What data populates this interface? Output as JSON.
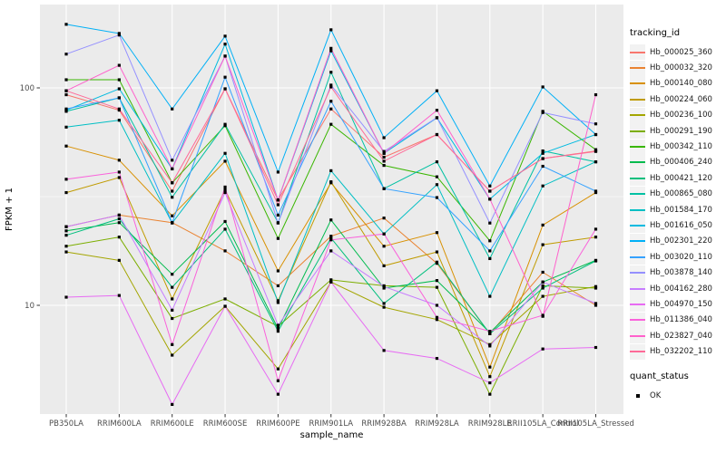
{
  "chart_data": {
    "type": "line",
    "title": "",
    "xlabel": "sample_name",
    "ylabel": "FPKM + 1",
    "y_scale": "log10",
    "y_major_ticks": [
      10,
      100
    ],
    "y_minor_gridlines": [
      3.162,
      31.62
    ],
    "ylim": [
      3.16,
      235
    ],
    "grid": true,
    "panel_bg": "#EBEBEB",
    "grid_color": "#FFFFFF",
    "axis_text_color": "#4d4d4d",
    "marker": {
      "shape": "square",
      "color": "#000000"
    },
    "categories": [
      "PB350LA",
      "RRIM600LA",
      "RRIM600LE",
      "RRIM600SE",
      "RRIM600PE",
      "RRIM901LA",
      "RRIM928BA",
      "RRIM928LA",
      "RRIM928LE",
      "RRII105LA_Control",
      "RRII105LA_Stressed"
    ],
    "series": [
      {
        "id": "Hb_000025_360",
        "color": "#F8766D",
        "values": [
          93,
          79,
          33.5,
          99,
          30.5,
          80,
          48,
          61,
          33.5,
          47.3,
          51.3
        ]
      },
      {
        "id": "Hb_000032_320",
        "color": "#EA8331",
        "values": [
          23,
          26,
          24,
          17.8,
          12.3,
          20.8,
          25.2,
          15.6,
          7.4,
          14.2,
          10
        ]
      },
      {
        "id": "Hb_000140_080",
        "color": "#D89000",
        "values": [
          54,
          46.5,
          25.8,
          46,
          14.4,
          36.6,
          18.7,
          21.6,
          5.2,
          23.4,
          33
        ]
      },
      {
        "id": "Hb_000224_060",
        "color": "#C09B00",
        "values": [
          33,
          38.7,
          10.7,
          34,
          10.5,
          37,
          15.2,
          17.6,
          4.7,
          19,
          20.6
        ]
      },
      {
        "id": "Hb_000236_100",
        "color": "#A3A500",
        "values": [
          17.6,
          16.1,
          5.9,
          9.9,
          5.1,
          12.8,
          9.8,
          8.6,
          6.6,
          11,
          12.2
        ]
      },
      {
        "id": "Hb_000291_190",
        "color": "#7CAE00",
        "values": [
          18.7,
          20.6,
          8.7,
          10.7,
          8,
          13.1,
          12.3,
          12.1,
          3.9,
          12.3,
          12
        ]
      },
      {
        "id": "Hb_000342_110",
        "color": "#39B600",
        "values": [
          109,
          109,
          36.6,
          67,
          20.3,
          68,
          44,
          39,
          19.8,
          78,
          52
        ]
      },
      {
        "id": "Hb_000406_240",
        "color": "#00BB4E",
        "values": [
          22,
          24,
          13.9,
          24.3,
          7.8,
          24.7,
          12,
          13,
          7.5,
          12.8,
          16.1
        ]
      },
      {
        "id": "Hb_000421_120",
        "color": "#00BF7D",
        "values": [
          21,
          25,
          12.1,
          22.4,
          7.6,
          20.4,
          10.2,
          15.8,
          7.4,
          12,
          16
        ]
      },
      {
        "id": "Hb_000865_080",
        "color": "#00C1A3",
        "values": [
          78,
          90,
          31.4,
          68,
          24,
          118,
          34.4,
          45.7,
          16.4,
          51.3,
          45.7
        ]
      },
      {
        "id": "Hb_001584_170",
        "color": "#00BFC4",
        "values": [
          66,
          71,
          23.9,
          50,
          10.3,
          41.6,
          21.3,
          35.9,
          11,
          35.4,
          45.7
        ]
      },
      {
        "id": "Hb_001616_050",
        "color": "#00BAE0",
        "values": [
          79,
          99,
          42.4,
          159,
          30.5,
          148,
          50,
          72.8,
          30.8,
          50,
          61
        ]
      },
      {
        "id": "Hb_002301_220",
        "color": "#00B0F6",
        "values": [
          196,
          178,
          80,
          173,
          41,
          185,
          59,
          97,
          35.4,
          101,
          61
        ]
      },
      {
        "id": "Hb_003020_110",
        "color": "#35A2FF",
        "values": [
          80,
          90,
          24,
          112,
          26,
          86.8,
          34.4,
          31.3,
          17.8,
          43.6,
          33.5
        ]
      },
      {
        "id": "Hb_003878_140",
        "color": "#9590FF",
        "values": [
          143,
          175,
          46.5,
          140,
          23.9,
          103,
          51,
          73,
          23.9,
          77,
          68.3
        ]
      },
      {
        "id": "Hb_004162_280",
        "color": "#C77CFF",
        "values": [
          23,
          26,
          9.5,
          33,
          8.1,
          17.8,
          12.2,
          10,
          6.5,
          12.8,
          10.2
        ]
      },
      {
        "id": "Hb_004970_150",
        "color": "#E76BF3",
        "values": [
          10.9,
          11.1,
          3.5,
          9.9,
          3.9,
          12.8,
          6.2,
          5.7,
          4.4,
          6.3,
          6.4
        ]
      },
      {
        "id": "Hb_011386_040",
        "color": "#FA62DB",
        "values": [
          38,
          41,
          6.6,
          35,
          4.5,
          20,
          21.3,
          8.8,
          7.6,
          9,
          22.4
        ]
      },
      {
        "id": "Hb_023827_040",
        "color": "#FF61CC",
        "values": [
          97,
          127,
          42.4,
          140,
          30.5,
          152,
          50,
          78.9,
          30.8,
          8.9,
          93
        ]
      },
      {
        "id": "Hb_032202_110",
        "color": "#FF6A98",
        "values": [
          97,
          80,
          36.6,
          99,
          29,
          101,
          46,
          61,
          33.5,
          47.3,
          51
        ]
      }
    ],
    "legend": {
      "position": "right",
      "color_title": "tracking_id",
      "shape_title": "quant_status",
      "shape_items": [
        {
          "label": "OK",
          "shape": "square",
          "color": "#000000"
        }
      ]
    }
  }
}
